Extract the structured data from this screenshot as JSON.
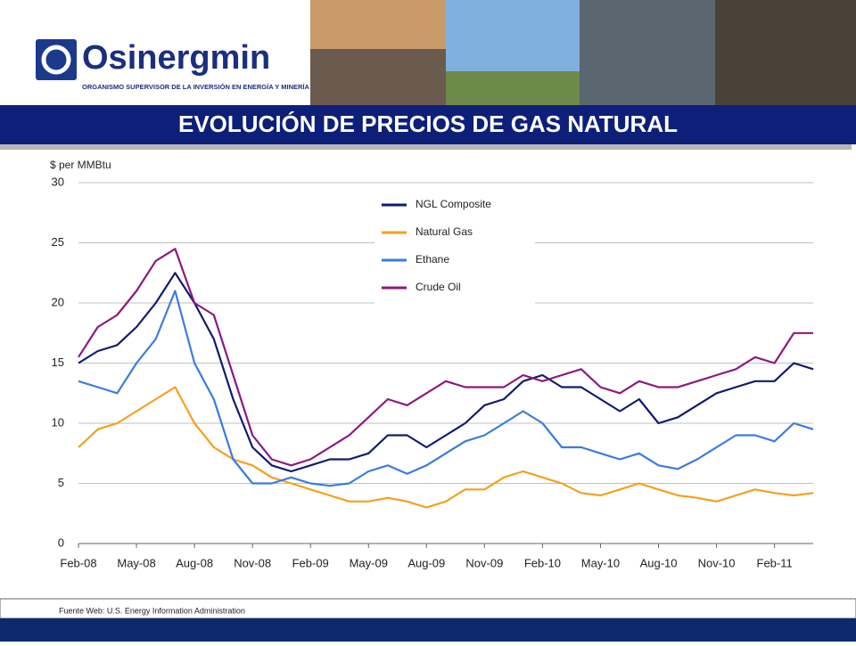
{
  "header": {
    "brand": "Osinergmin",
    "tagline": "ORGANISMO SUPERVISOR DE LA INVERSIÓN EN ENERGÍA Y MINERÍA",
    "title": "EVOLUCIÓN DE PRECIOS DE GAS NATURAL"
  },
  "chart_data": {
    "type": "line",
    "ylabel": "$ per MMBtu",
    "categories": [
      "Feb-08",
      null,
      null,
      "May-08",
      null,
      null,
      "Aug-08",
      null,
      null,
      "Nov-08",
      null,
      null,
      "Feb-09",
      null,
      null,
      "May-09",
      null,
      null,
      "Aug-09",
      null,
      null,
      "Nov-09",
      null,
      null,
      "Feb-10",
      null,
      null,
      "May-10",
      null,
      null,
      "Aug-10",
      null,
      null,
      "Nov-10",
      null,
      null,
      "Feb-11",
      null,
      null
    ],
    "series": [
      {
        "name": "NGL Composite",
        "color": "#111a6e",
        "values": [
          15,
          16,
          16.5,
          18,
          20,
          22.5,
          20,
          17,
          12,
          8,
          6.5,
          6,
          6.5,
          7,
          7,
          7.5,
          9,
          9,
          8,
          9,
          10,
          11.5,
          12,
          13.5,
          14,
          13,
          13,
          12,
          11,
          12,
          10,
          10.5,
          11.5,
          12.5,
          13,
          13.5,
          13.5,
          15,
          14.5
        ]
      },
      {
        "name": "Natural Gas",
        "color": "#f5a01a",
        "values": [
          8,
          9.5,
          10,
          11,
          12,
          13,
          10,
          8,
          7,
          6.5,
          5.5,
          5,
          4.5,
          4,
          3.5,
          3.5,
          3.8,
          3.5,
          3,
          3.5,
          4.5,
          4.5,
          5.5,
          6,
          5.5,
          5,
          4.2,
          4,
          4.5,
          5,
          4.5,
          4,
          3.8,
          3.5,
          4,
          4.5,
          4.2,
          4,
          4.2
        ]
      },
      {
        "name": "Ethane",
        "color": "#3a7be0",
        "values": [
          13.5,
          13,
          12.5,
          15,
          17,
          21,
          15,
          12,
          7,
          5,
          5,
          5.5,
          5,
          4.8,
          5,
          6,
          6.5,
          5.8,
          6.5,
          7.5,
          8.5,
          9,
          10,
          11,
          10,
          8,
          8,
          7.5,
          7,
          7.5,
          6.5,
          6.2,
          7,
          8,
          9,
          9,
          8.5,
          10,
          9.5
        ]
      },
      {
        "name": "Crude Oil",
        "color": "#8a1a7e",
        "values": [
          15.5,
          18,
          19,
          21,
          23.5,
          24.5,
          20,
          19,
          14,
          9,
          7,
          6.5,
          7,
          8,
          9,
          10.5,
          12,
          11.5,
          12.5,
          13.5,
          13,
          13,
          13,
          14,
          13.5,
          14,
          14.5,
          13,
          12.5,
          13.5,
          13,
          13,
          13.5,
          14,
          14.5,
          15.5,
          15,
          17.5,
          17.5
        ]
      }
    ],
    "ylim": [
      0,
      30
    ],
    "yticks": [
      0,
      5,
      10,
      15,
      20,
      25,
      30
    ],
    "grid": true,
    "legend": "top"
  },
  "footer": {
    "source": "Fuente Web: U.S. Energy Information Administration"
  }
}
